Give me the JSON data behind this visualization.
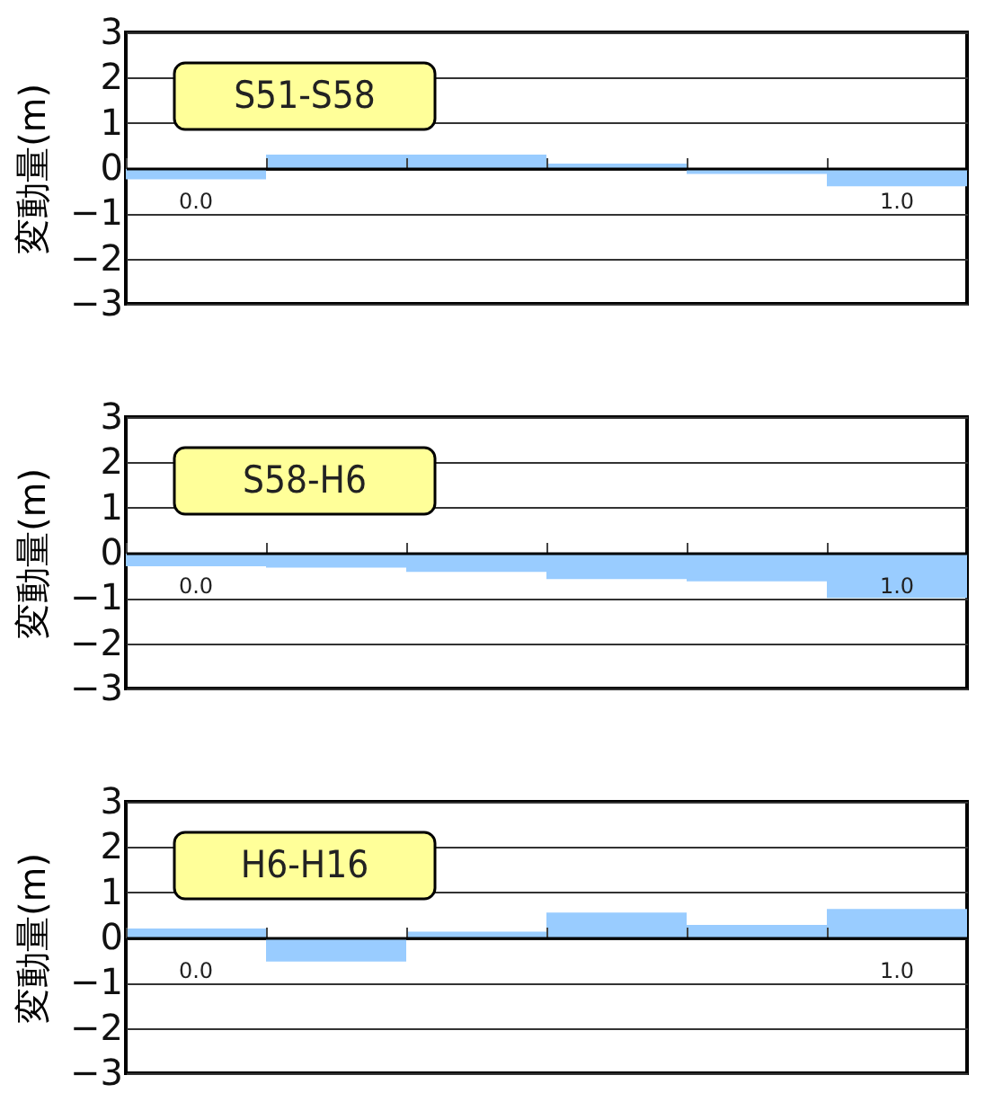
{
  "chart_data": [
    {
      "type": "bar",
      "title": "S51-S58",
      "ylabel": "変動量(m)",
      "categories": [
        "0.0",
        null,
        null,
        null,
        null,
        "1.0"
      ],
      "values": [
        -0.25,
        0.3,
        0.3,
        0.1,
        -0.13,
        -0.4
      ],
      "color": "#99ccff",
      "ylim": [
        -3,
        3
      ],
      "yticks": [
        -3,
        -2,
        -1,
        0,
        1,
        2,
        3
      ],
      "grid": "y"
    },
    {
      "type": "bar",
      "title": "S58-H6",
      "ylabel": "変動量(m)",
      "categories": [
        "0.0",
        null,
        null,
        null,
        null,
        "1.0"
      ],
      "values": [
        -0.3,
        -0.33,
        -0.42,
        -0.58,
        -0.63,
        -1.0
      ],
      "color": "#99ccff",
      "ylim": [
        -3,
        3
      ],
      "yticks": [
        -3,
        -2,
        -1,
        0,
        1,
        2,
        3
      ],
      "grid": "y"
    },
    {
      "type": "bar",
      "title": "H6-H16",
      "ylabel": "変動量(m)",
      "categories": [
        "0.0",
        null,
        null,
        null,
        null,
        "1.0"
      ],
      "values": [
        0.2,
        -0.53,
        0.13,
        0.55,
        0.28,
        0.63
      ],
      "color": "#99ccff",
      "ylim": [
        -3,
        3
      ],
      "yticks": [
        -3,
        -2,
        -1,
        0,
        1,
        2,
        3
      ],
      "grid": "y"
    }
  ]
}
